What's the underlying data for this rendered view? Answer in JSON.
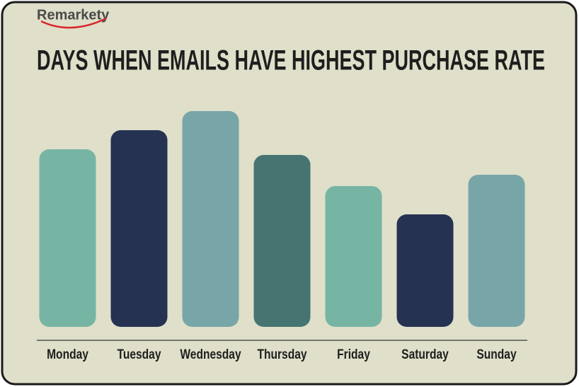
{
  "brand": "Remarkety",
  "chart_data": {
    "type": "bar",
    "title": "DAYS WHEN EMAILS HAVE HIGHEST PURCHASE RATE",
    "categories": [
      "Monday",
      "Tuesday",
      "Wednesday",
      "Thursday",
      "Friday",
      "Saturday",
      "Sunday"
    ],
    "values": [
      251,
      278,
      305,
      243,
      199,
      159,
      215
    ],
    "colors": [
      "#76b5a3",
      "#253252",
      "#78a6a8",
      "#467571",
      "#76b5a3",
      "#253252",
      "#78a6a8"
    ],
    "ylim": [
      0,
      305
    ]
  }
}
